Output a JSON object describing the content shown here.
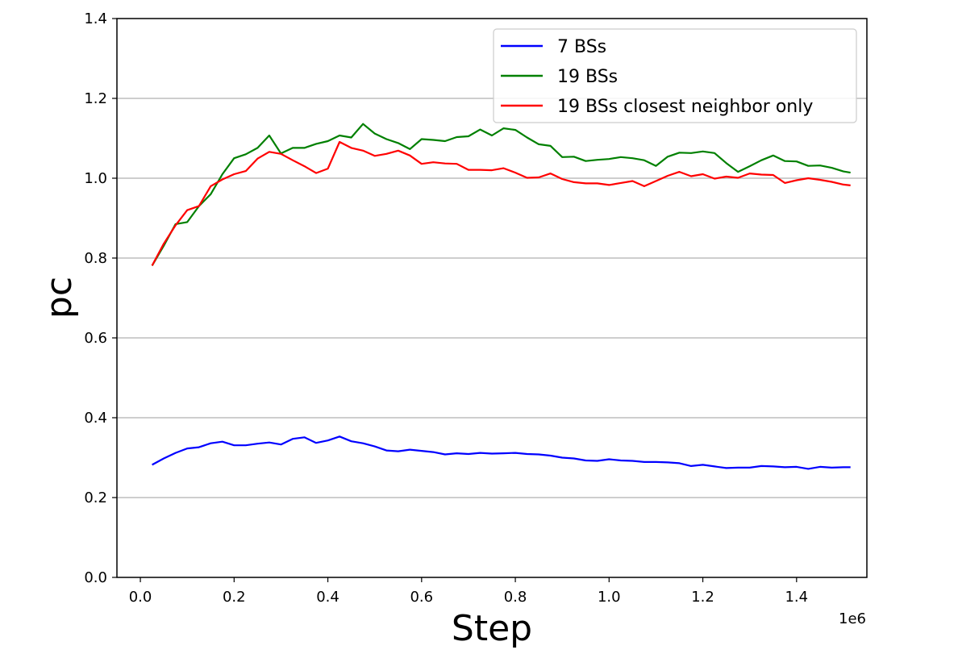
{
  "chart_data": {
    "type": "line",
    "title": "",
    "xlabel": "Step",
    "ylabel": "pc",
    "x_offset_text": "1e6",
    "xlim": [
      -0.05,
      1.55
    ],
    "ylim": [
      0.0,
      1.4
    ],
    "x_ticks": [
      0.0,
      0.2,
      0.4,
      0.6,
      0.8,
      1.0,
      1.2,
      1.4
    ],
    "x_tick_labels": [
      "0.0",
      "0.2",
      "0.4",
      "0.6",
      "0.8",
      "1.0",
      "1.2",
      "1.4"
    ],
    "y_ticks": [
      0.0,
      0.2,
      0.4,
      0.6,
      0.8,
      1.0,
      1.2,
      1.4
    ],
    "y_tick_labels": [
      "0.0",
      "0.2",
      "0.4",
      "0.6",
      "0.8",
      "1.0",
      "1.2",
      "1.4"
    ],
    "grid": "horizontal",
    "legend_position": "top-right",
    "x": [
      0.025,
      0.05,
      0.075,
      0.1,
      0.125,
      0.15,
      0.175,
      0.2,
      0.225,
      0.25,
      0.275,
      0.3,
      0.325,
      0.35,
      0.375,
      0.4,
      0.425,
      0.45,
      0.475,
      0.5,
      0.525,
      0.55,
      0.575,
      0.6,
      0.625,
      0.65,
      0.675,
      0.7,
      0.725,
      0.75,
      0.775,
      0.8,
      0.825,
      0.85,
      0.875,
      0.9,
      0.925,
      0.95,
      0.975,
      1.0,
      1.025,
      1.05,
      1.075,
      1.1,
      1.125,
      1.15,
      1.175,
      1.2,
      1.225,
      1.25,
      1.275,
      1.3,
      1.325,
      1.35,
      1.375,
      1.4,
      1.425,
      1.45,
      1.475,
      1.5,
      1.515
    ],
    "series": [
      {
        "name": "7 BSs",
        "color": "#0000ff",
        "values": [
          0.282,
          0.298,
          0.312,
          0.323,
          0.326,
          0.336,
          0.34,
          0.331,
          0.331,
          0.335,
          0.338,
          0.333,
          0.347,
          0.351,
          0.337,
          0.343,
          0.353,
          0.341,
          0.336,
          0.328,
          0.318,
          0.316,
          0.32,
          0.317,
          0.314,
          0.308,
          0.311,
          0.309,
          0.312,
          0.31,
          0.311,
          0.312,
          0.309,
          0.308,
          0.305,
          0.3,
          0.298,
          0.293,
          0.292,
          0.296,
          0.293,
          0.292,
          0.289,
          0.289,
          0.288,
          0.286,
          0.279,
          0.282,
          0.278,
          0.274,
          0.275,
          0.275,
          0.279,
          0.278,
          0.276,
          0.277,
          0.272,
          0.277,
          0.275,
          0.276,
          0.276
        ]
      },
      {
        "name": "19 BSs",
        "color": "#008000",
        "values": [
          0.781,
          0.831,
          0.885,
          0.89,
          0.93,
          0.96,
          1.01,
          1.05,
          1.06,
          1.076,
          1.107,
          1.062,
          1.076,
          1.076,
          1.086,
          1.093,
          1.107,
          1.102,
          1.136,
          1.112,
          1.098,
          1.088,
          1.073,
          1.098,
          1.096,
          1.093,
          1.103,
          1.105,
          1.122,
          1.107,
          1.125,
          1.121,
          1.102,
          1.085,
          1.081,
          1.053,
          1.054,
          1.043,
          1.046,
          1.048,
          1.053,
          1.05,
          1.045,
          1.031,
          1.054,
          1.064,
          1.063,
          1.067,
          1.063,
          1.038,
          1.016,
          1.03,
          1.045,
          1.057,
          1.043,
          1.042,
          1.031,
          1.032,
          1.026,
          1.017,
          1.014
        ]
      },
      {
        "name": "19 BSs closest neighbor only",
        "color": "#ff0000",
        "values": [
          0.781,
          0.836,
          0.882,
          0.92,
          0.93,
          0.98,
          0.997,
          1.01,
          1.018,
          1.049,
          1.066,
          1.061,
          1.045,
          1.03,
          1.013,
          1.024,
          1.091,
          1.076,
          1.069,
          1.056,
          1.061,
          1.069,
          1.057,
          1.036,
          1.04,
          1.037,
          1.036,
          1.021,
          1.021,
          1.02,
          1.025,
          1.014,
          1.001,
          1.002,
          1.012,
          0.998,
          0.99,
          0.987,
          0.987,
          0.983,
          0.988,
          0.993,
          0.98,
          0.993,
          1.006,
          1.016,
          1.005,
          1.01,
          0.999,
          1.004,
          1.001,
          1.012,
          1.009,
          1.008,
          0.988,
          0.995,
          1.0,
          0.996,
          0.991,
          0.984,
          0.982
        ]
      }
    ]
  }
}
